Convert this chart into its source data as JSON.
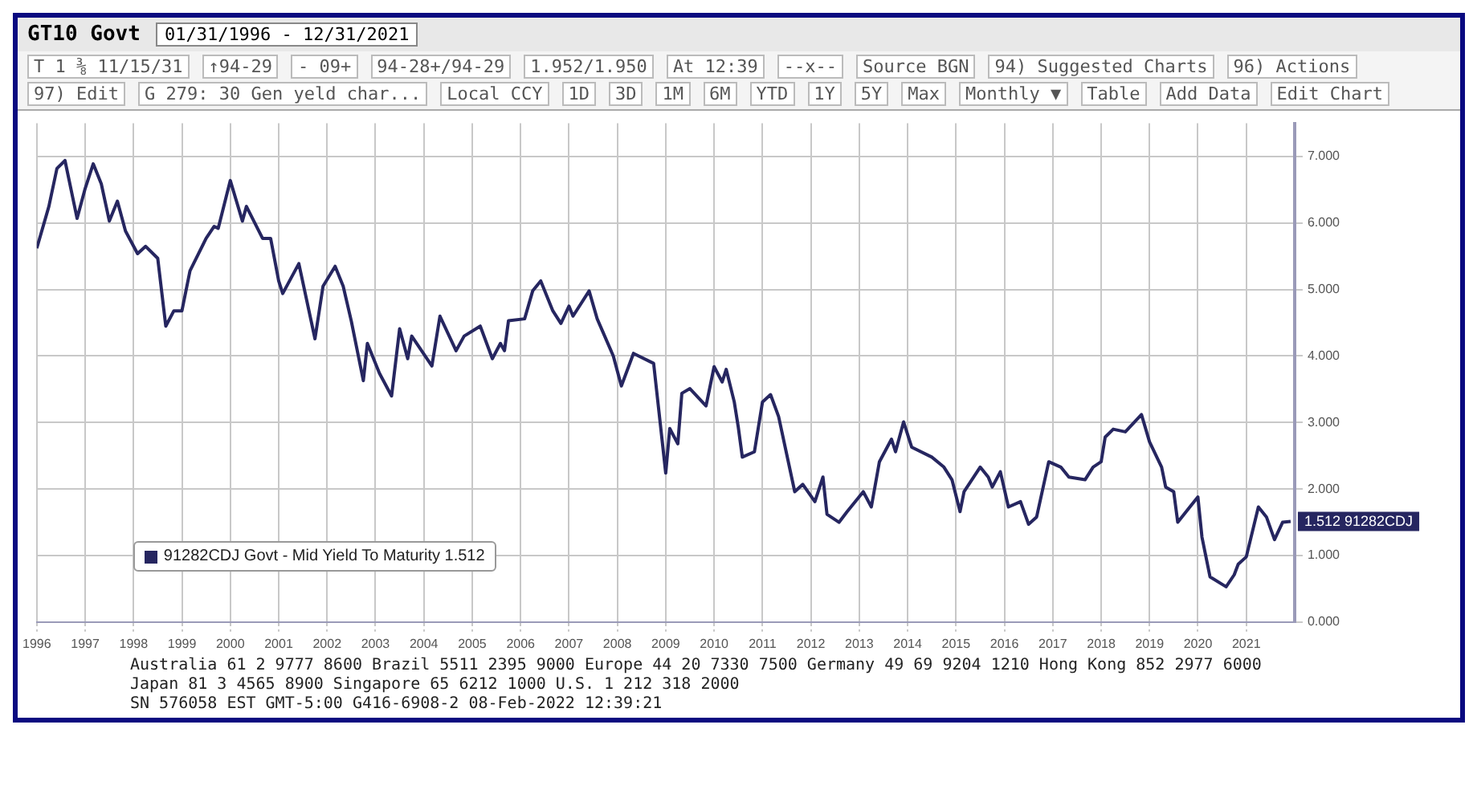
{
  "chart_data": {
    "type": "line",
    "title": "GT10 Govt",
    "subtitle": "01/31/1996 - 12/31/2021",
    "annotations": [
      "T 1 ⅜ 11/15/31",
      "↑94-29",
      "- 09+",
      "94-28+/94-29",
      "1.952/1.950",
      "At 12:39",
      "--x--",
      "Source BGN",
      "94) Suggested Charts",
      "96) Actions",
      "97) Edit",
      "G 279: 30 Gen yeld char...",
      "Local CCY",
      "1D",
      "3D",
      "1M",
      "6M",
      "YTD",
      "1Y",
      "5Y",
      "Max",
      "Monthly ▼",
      "Table",
      "Add Data",
      "Edit Chart",
      {
        "text": "1.512 91282CDJ",
        "x": "2021-12",
        "y": 1.512
      },
      "Australia 61 2 9777 8600 Brazil 5511 2395 9000 Europe 44 20 7330 7500 Germany 49 69 9204 1210 Hong Kong 852 2977 6000",
      "Japan 81 3 4565 8900 Singapore 65 6212 1000 U.S. 1 212 318 2000",
      "SN 576058 EST GMT-5:00 G416-6908-2 08-Feb-2022 12:39:21"
    ],
    "x": [
      "1996-01",
      "1996-04",
      "1996-06",
      "1996-08",
      "1996-11",
      "1997-01",
      "1997-03",
      "1997-05",
      "1997-07",
      "1997-09",
      "1997-11",
      "1998-02",
      "1998-04",
      "1998-07",
      "1998-09",
      "1998-11",
      "1999-01",
      "1999-03",
      "1999-07",
      "1999-09",
      "1999-10",
      "2000-01",
      "2000-04",
      "2000-05",
      "2000-09",
      "2000-11",
      "2001-01",
      "2001-02",
      "2001-06",
      "2001-10",
      "2001-12",
      "2002-03",
      "2002-05",
      "2002-07",
      "2002-10",
      "2002-11",
      "2003-02",
      "2003-05",
      "2003-07",
      "2003-09",
      "2003-10",
      "2004-03",
      "2004-05",
      "2004-09",
      "2004-11",
      "2005-03",
      "2005-06",
      "2005-08",
      "2005-09",
      "2005-10",
      "2006-02",
      "2006-04",
      "2006-06",
      "2006-09",
      "2006-11",
      "2007-01",
      "2007-02",
      "2007-06",
      "2007-08",
      "2007-12",
      "2008-02",
      "2008-05",
      "2008-10",
      "2009-01",
      "2009-02",
      "2009-04",
      "2009-05",
      "2009-07",
      "2009-11",
      "2010-01",
      "2010-03",
      "2010-04",
      "2010-06",
      "2010-07",
      "2010-08",
      "2010-11",
      "2011-01",
      "2011-03",
      "2011-05",
      "2011-09",
      "2011-11",
      "2012-02",
      "2012-04",
      "2012-05",
      "2012-08",
      "2012-10",
      "2013-02",
      "2013-04",
      "2013-06",
      "2013-09",
      "2013-10",
      "2013-12",
      "2014-02",
      "2014-07",
      "2014-10",
      "2014-12",
      "2015-02",
      "2015-03",
      "2015-07",
      "2015-09",
      "2015-10",
      "2015-12",
      "2016-02",
      "2016-05",
      "2016-07",
      "2016-09",
      "2016-12",
      "2017-03",
      "2017-05",
      "2017-09",
      "2017-11",
      "2018-01",
      "2018-02",
      "2018-04",
      "2018-07",
      "2018-11",
      "2019-01",
      "2019-04",
      "2019-05",
      "2019-07",
      "2019-08",
      "2019-11",
      "2020-01",
      "2020-02",
      "2020-04",
      "2020-08",
      "2020-10",
      "2020-11",
      "2021-01",
      "2021-04",
      "2021-06",
      "2021-08",
      "2021-10",
      "2021-12"
    ],
    "series": [
      {
        "name": "91282CDJ Govt - Mid Yield To Maturity 1.512",
        "color": "#262660",
        "values": [
          5.62,
          6.25,
          6.82,
          6.94,
          6.07,
          6.52,
          6.89,
          6.59,
          6.03,
          6.33,
          5.88,
          5.54,
          5.65,
          5.47,
          4.45,
          4.68,
          4.68,
          5.28,
          5.77,
          5.95,
          5.92,
          6.64,
          6.03,
          6.25,
          5.77,
          5.77,
          5.13,
          4.94,
          5.39,
          4.26,
          5.05,
          5.35,
          5.05,
          4.53,
          3.63,
          4.19,
          3.74,
          3.4,
          4.41,
          3.96,
          4.3,
          3.85,
          4.6,
          4.08,
          4.3,
          4.45,
          3.96,
          4.19,
          4.08,
          4.53,
          4.56,
          4.98,
          5.13,
          4.68,
          4.49,
          4.75,
          4.6,
          4.98,
          4.56,
          4.0,
          3.55,
          4.04,
          3.89,
          2.24,
          2.91,
          2.68,
          3.44,
          3.51,
          3.25,
          3.84,
          3.61,
          3.8,
          3.31,
          2.93,
          2.48,
          2.56,
          3.31,
          3.42,
          3.09,
          1.96,
          2.07,
          1.81,
          2.18,
          1.62,
          1.5,
          1.66,
          1.96,
          1.73,
          2.41,
          2.75,
          2.56,
          3.01,
          2.63,
          2.48,
          2.33,
          2.14,
          1.66,
          1.96,
          2.33,
          2.18,
          2.03,
          2.26,
          1.73,
          1.81,
          1.47,
          1.58,
          2.41,
          2.33,
          2.18,
          2.14,
          2.33,
          2.41,
          2.78,
          2.9,
          2.86,
          3.12,
          2.71,
          2.33,
          2.03,
          1.96,
          1.5,
          1.73,
          1.88,
          1.28,
          0.68,
          0.53,
          0.71,
          0.87,
          0.98,
          1.73,
          1.58,
          1.24,
          1.5,
          1.512
        ]
      }
    ],
    "xlim": [
      "1996-01",
      "2022-01"
    ],
    "xticks": [
      "1996",
      "1997",
      "1998",
      "1999",
      "2000",
      "2001",
      "2002",
      "2003",
      "2004",
      "2005",
      "2006",
      "2007",
      "2008",
      "2009",
      "2010",
      "2011",
      "2012",
      "2013",
      "2014",
      "2015",
      "2016",
      "2017",
      "2018",
      "2019",
      "2020",
      "2021"
    ],
    "ylim": [
      0,
      7.5
    ],
    "yticks": [
      {
        "value": 0,
        "label": "0.000"
      },
      {
        "value": 1,
        "label": "1.000"
      },
      {
        "value": 2,
        "label": "2.000"
      },
      {
        "value": 3,
        "label": "3.000"
      },
      {
        "value": 4,
        "label": "4.000"
      },
      {
        "value": 5,
        "label": "5.000"
      },
      {
        "value": 6,
        "label": "6.000"
      },
      {
        "value": 7,
        "label": "7.000"
      }
    ],
    "grid": true,
    "legend": "bottom left",
    "marker": "none",
    "line_style": "solid"
  }
}
